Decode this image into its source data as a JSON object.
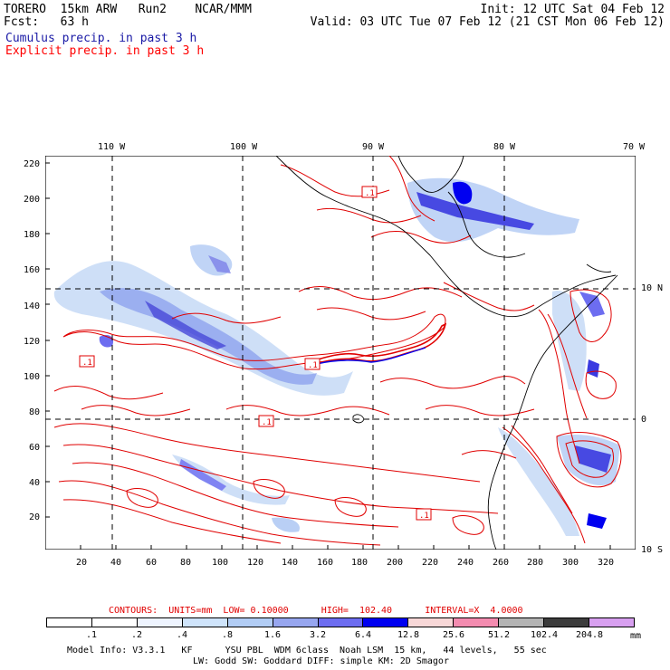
{
  "header": {
    "line1_left": "TORERO  15km ARW   Run2    NCAR/MMM",
    "line1_right": "Init: 12 UTC Sat 04 Feb 12",
    "line2_left": "Fcst:   63 h",
    "line2_right": "Valid: 03 UTC Tue 07 Feb 12 (21 CST Mon 06 Feb 12)",
    "field1": "Cumulus precip. in past 3 h",
    "field2": "Explicit precip. in past 3 h"
  },
  "colors": {
    "field1": "#1a1aa6",
    "field2": "#ff0000",
    "contour": "#e00000",
    "coast": "#000000"
  },
  "lon_labels": [
    "110 W",
    "100 W",
    "90 W",
    "80 W",
    "70 W"
  ],
  "lat_labels": [
    "10 N",
    "0",
    "10 S"
  ],
  "y_ticks": [
    "220",
    "200",
    "180",
    "160",
    "140",
    "120",
    "100",
    "80",
    "60",
    "40",
    "20"
  ],
  "x_ticks": [
    "20",
    "40",
    "60",
    "80",
    "100",
    "120",
    "140",
    "160",
    "180",
    "200",
    "220",
    "240",
    "260",
    "280",
    "300",
    "320"
  ],
  "contour_labels": [
    ".1",
    ".1",
    ".1",
    ".1",
    ".1"
  ],
  "contour_info": "CONTOURS:  UNITS=mm  LOW= 0.10000      HIGH=  102.40      INTERVAL=X  4.0000",
  "colorbar": {
    "colors": [
      "#ffffff",
      "#ffffff",
      "#eef4ff",
      "#cfe4fb",
      "#b2cdf5",
      "#97a6ef",
      "#6d6df0",
      "#0000f0",
      "#f8d8d8",
      "#f48cb0",
      "#b4b4b4",
      "#3c3c3c",
      "#d8a0f0"
    ],
    "labels": [
      ".1",
      ".2",
      ".4",
      ".8",
      "1.6",
      "3.2",
      "6.4",
      "12.8",
      "25.6",
      "51.2",
      "102.4",
      "204.8"
    ],
    "unit": "mm"
  },
  "footer": {
    "line1": "Model Info: V3.3.1   KF      YSU PBL  WDM 6class  Noah LSM  15 km,   44 levels,   55 sec",
    "line2": "LW: Godd SW: Goddard DIFF: simple KM: 2D Smagor"
  }
}
